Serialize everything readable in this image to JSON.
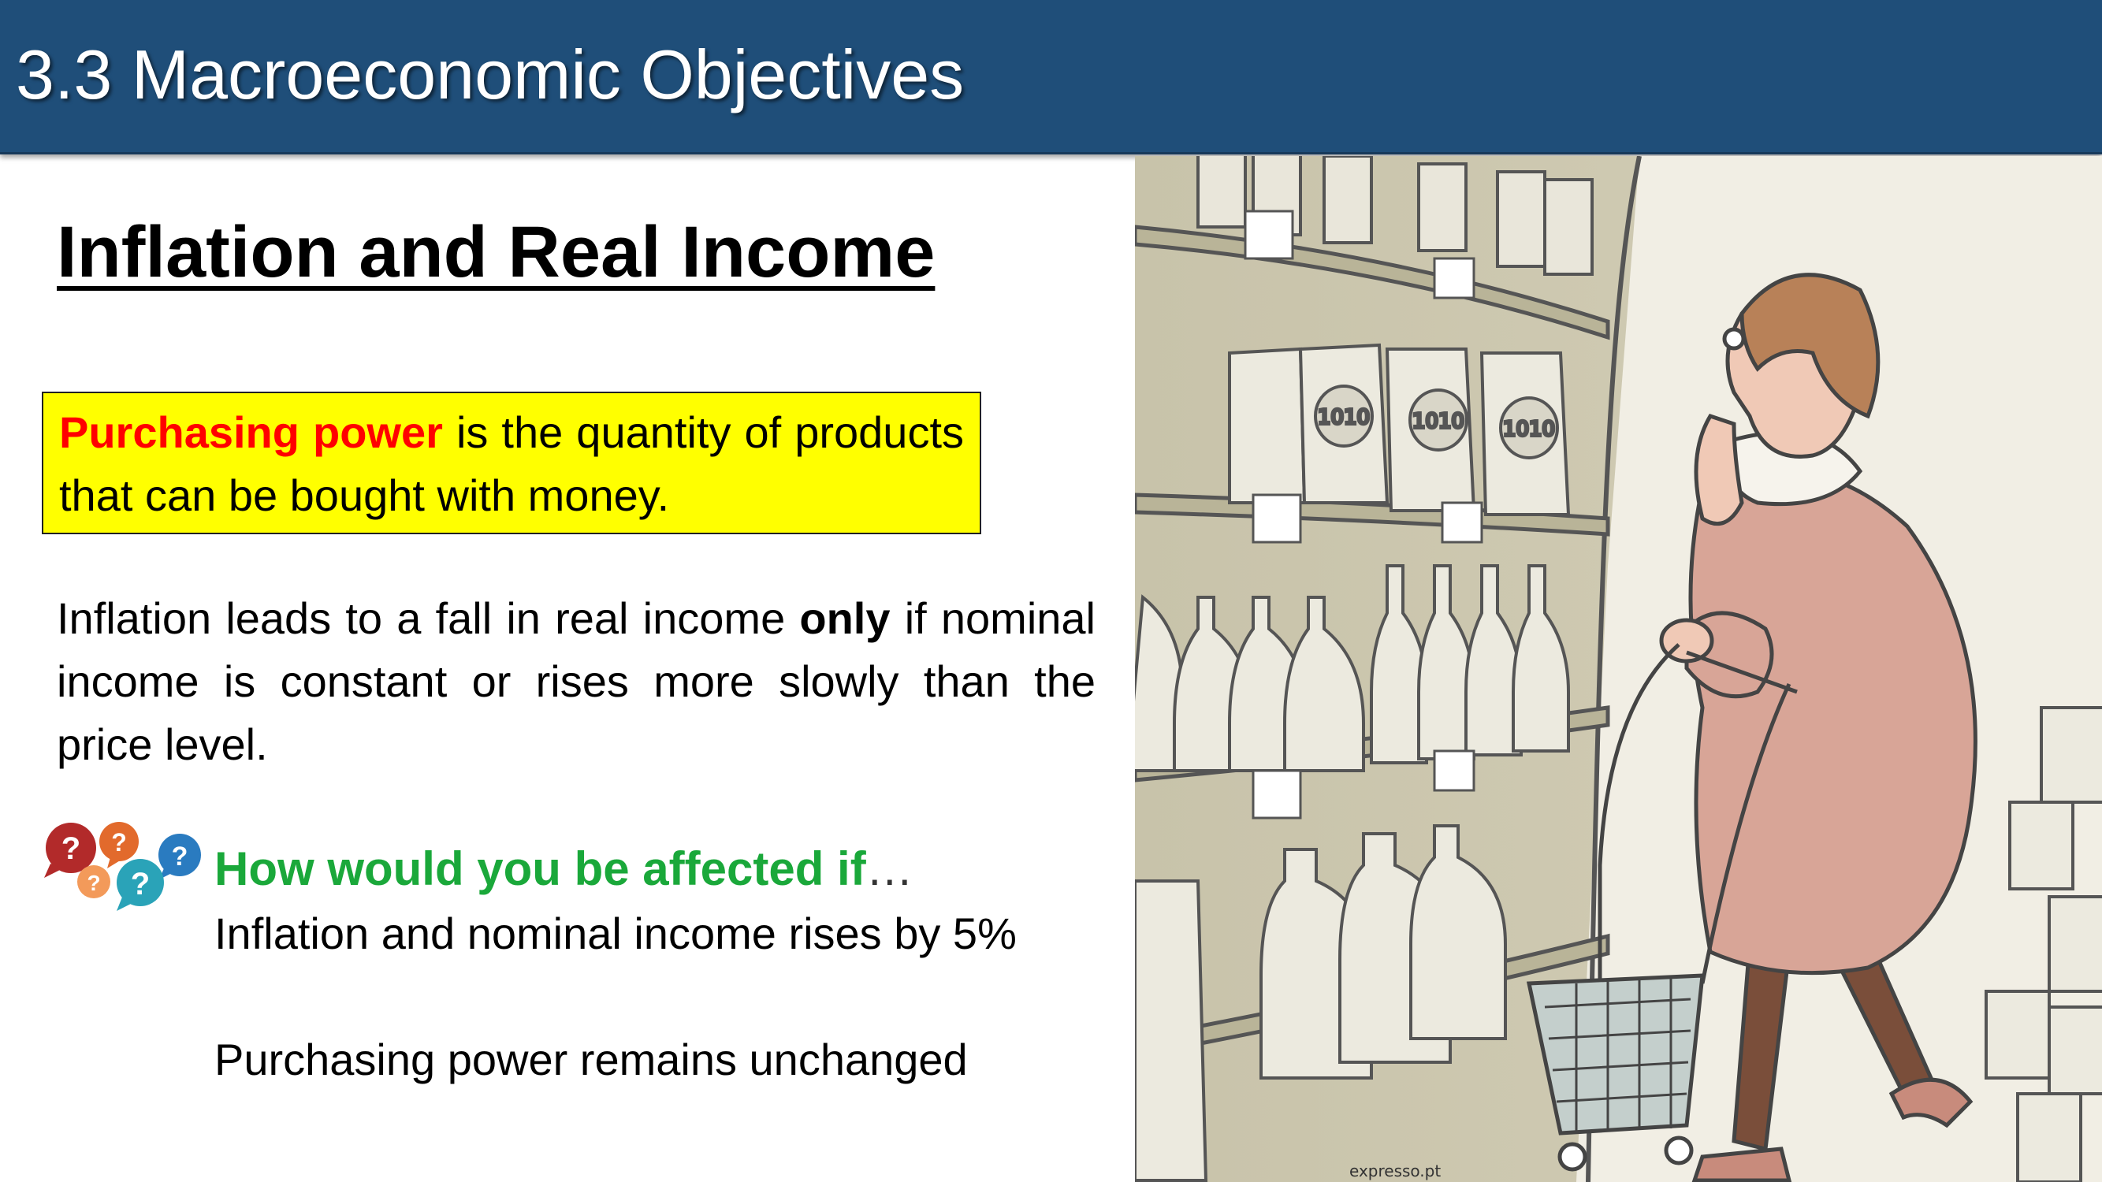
{
  "header": {
    "title": "3.3 Macroeconomic Objectives",
    "bg_color": "#1f4e79"
  },
  "heading": "Inflation and Real Income",
  "definition": {
    "keyword": "Purchasing power",
    "text": " is the quantity of products that can be bought with money.",
    "box_color": "#ffff00",
    "keyword_color": "#ff0000"
  },
  "paragraph": {
    "part1": "Inflation leads to a fall in real income ",
    "bold": "only",
    "part2": " if nominal income is constant or rises more slowly than the price level."
  },
  "question": {
    "icon": "question-bubbles-icon",
    "heading": "How would you be affected if",
    "ellipsis": "…",
    "color": "#1aa83a",
    "line1": "Inflation and nominal income rises by 5%",
    "line2": "Purchasing power remains unchanged"
  },
  "cartoon": {
    "subject": "shopper-cartoon-illustration",
    "credit": "expresso.pt",
    "jar_label": "1010"
  }
}
